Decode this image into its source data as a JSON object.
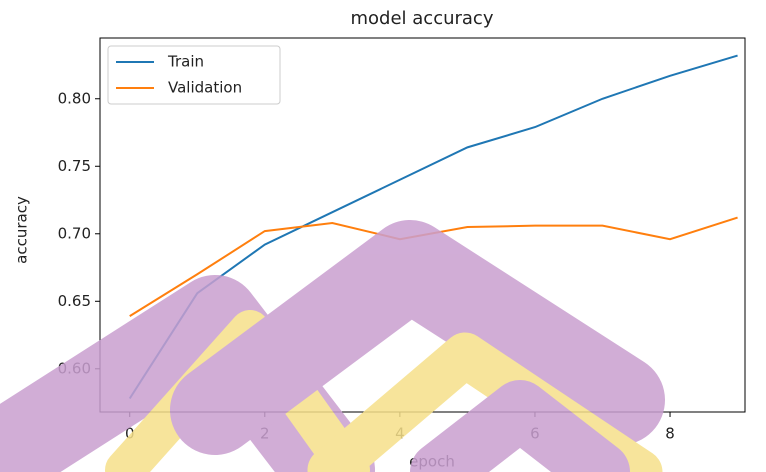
{
  "chart_data": {
    "type": "line",
    "title": "model accuracy",
    "x_label": "epoch",
    "y_label": "accuracy",
    "x": [
      0,
      1,
      2,
      3,
      4,
      5,
      6,
      7,
      8,
      9
    ],
    "series": [
      {
        "name": "Train",
        "color": "#1f77b4",
        "values": [
          0.578,
          0.656,
          0.692,
          0.716,
          0.74,
          0.764,
          0.779,
          0.8,
          0.817,
          0.832
        ]
      },
      {
        "name": "Validation",
        "color": "#ff7f0e",
        "values": [
          0.639,
          0.67,
          0.702,
          0.708,
          0.696,
          0.705,
          0.706,
          0.706,
          0.696,
          0.712
        ]
      }
    ],
    "xlim": [
      -0.44,
      9.11
    ],
    "ylim": [
      0.568,
      0.845
    ],
    "xticks": [
      0,
      2,
      4,
      6,
      8
    ],
    "yticks": [
      {
        "value": 0.6,
        "label": "0.60"
      },
      0.65,
      {
        "value": 0.7,
        "label": "0.70"
      },
      0.75,
      {
        "value": 0.8,
        "label": "0.80"
      }
    ],
    "grid": false,
    "legend": "upper-left"
  }
}
